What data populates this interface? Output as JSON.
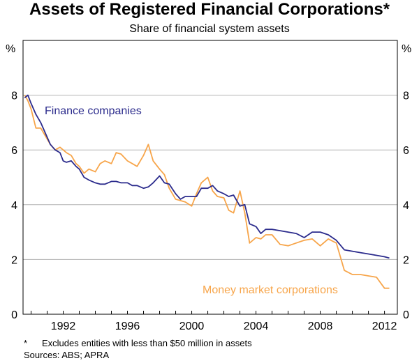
{
  "chart_data": {
    "type": "line",
    "title": "Assets of Registered Financial Corporations*",
    "subtitle": "Share of financial system assets",
    "ylabel_left": "%",
    "ylabel_right": "%",
    "ylim": [
      0,
      10
    ],
    "yticks": [
      "0",
      "2",
      "4",
      "6",
      "8"
    ],
    "xlim": [
      1989.5,
      2012.8
    ],
    "xticks": [
      "1992",
      "1996",
      "2000",
      "2004",
      "2008",
      "2012"
    ],
    "grid": true,
    "series": [
      {
        "name": "Finance companies",
        "color": "#2b2b8c",
        "x": [
          1989.6,
          1989.8,
          1990.0,
          1990.3,
          1990.6,
          1990.9,
          1991.2,
          1991.5,
          1991.8,
          1992.0,
          1992.2,
          1992.5,
          1992.8,
          1993.0,
          1993.3,
          1993.6,
          1994.0,
          1994.3,
          1994.6,
          1995.0,
          1995.3,
          1995.6,
          1996.0,
          1996.3,
          1996.6,
          1997.0,
          1997.3,
          1997.6,
          1998.0,
          1998.3,
          1998.6,
          1999.0,
          1999.3,
          1999.6,
          2000.0,
          2000.3,
          2000.6,
          2001.0,
          2001.3,
          2001.6,
          2002.0,
          2002.3,
          2002.6,
          2003.0,
          2003.3,
          2003.6,
          2004.0,
          2004.3,
          2004.6,
          2005.0,
          2005.5,
          2006.0,
          2006.5,
          2007.0,
          2007.5,
          2008.0,
          2008.5,
          2009.0,
          2009.5,
          2010.0,
          2010.5,
          2011.0,
          2011.5,
          2012.0,
          2012.3
        ],
        "values": [
          7.9,
          8.0,
          7.7,
          7.3,
          7.0,
          6.6,
          6.2,
          6.0,
          5.9,
          5.6,
          5.55,
          5.6,
          5.4,
          5.3,
          5.0,
          4.9,
          4.8,
          4.75,
          4.75,
          4.85,
          4.85,
          4.8,
          4.8,
          4.7,
          4.7,
          4.6,
          4.65,
          4.8,
          5.05,
          4.8,
          4.75,
          4.4,
          4.2,
          4.3,
          4.3,
          4.3,
          4.6,
          4.6,
          4.7,
          4.5,
          4.4,
          4.3,
          4.35,
          3.95,
          4.0,
          3.3,
          3.2,
          2.95,
          3.1,
          3.1,
          3.05,
          3.0,
          2.95,
          2.8,
          3.0,
          3.0,
          2.9,
          2.7,
          2.35,
          2.3,
          2.25,
          2.2,
          2.15,
          2.1,
          2.05
        ]
      },
      {
        "name": "Money market corporations",
        "color": "#f7a54a",
        "x": [
          1989.6,
          1989.8,
          1990.0,
          1990.3,
          1990.6,
          1990.9,
          1991.2,
          1991.5,
          1991.8,
          1992.0,
          1992.2,
          1992.5,
          1992.8,
          1993.0,
          1993.3,
          1993.6,
          1994.0,
          1994.3,
          1994.6,
          1995.0,
          1995.3,
          1995.6,
          1996.0,
          1996.3,
          1996.6,
          1997.0,
          1997.3,
          1997.6,
          1998.0,
          1998.3,
          1998.6,
          1999.0,
          1999.3,
          1999.6,
          2000.0,
          2000.3,
          2000.6,
          2001.0,
          2001.3,
          2001.6,
          2002.0,
          2002.3,
          2002.6,
          2003.0,
          2003.3,
          2003.6,
          2004.0,
          2004.3,
          2004.6,
          2005.0,
          2005.5,
          2006.0,
          2006.5,
          2007.0,
          2007.5,
          2008.0,
          2008.5,
          2009.0,
          2009.5,
          2010.0,
          2010.5,
          2011.0,
          2011.5,
          2012.0,
          2012.3
        ],
        "values": [
          8.0,
          7.8,
          7.5,
          6.8,
          6.8,
          6.5,
          6.2,
          6.0,
          6.1,
          6.0,
          5.9,
          5.8,
          5.5,
          5.4,
          5.15,
          5.3,
          5.2,
          5.5,
          5.6,
          5.5,
          5.9,
          5.85,
          5.6,
          5.5,
          5.4,
          5.8,
          6.2,
          5.6,
          5.3,
          5.1,
          4.6,
          4.2,
          4.15,
          4.1,
          3.95,
          4.4,
          4.8,
          5.0,
          4.5,
          4.3,
          4.25,
          3.8,
          3.7,
          4.5,
          3.7,
          2.6,
          2.8,
          2.75,
          2.9,
          2.9,
          2.55,
          2.5,
          2.6,
          2.7,
          2.75,
          2.5,
          2.75,
          2.6,
          1.6,
          1.45,
          1.45,
          1.4,
          1.35,
          0.95,
          0.95
        ]
      }
    ]
  },
  "footnote": {
    "marker": "*",
    "text": "Excludes entities with less than $50 million in assets"
  },
  "sources": "Sources: ABS; APRA"
}
